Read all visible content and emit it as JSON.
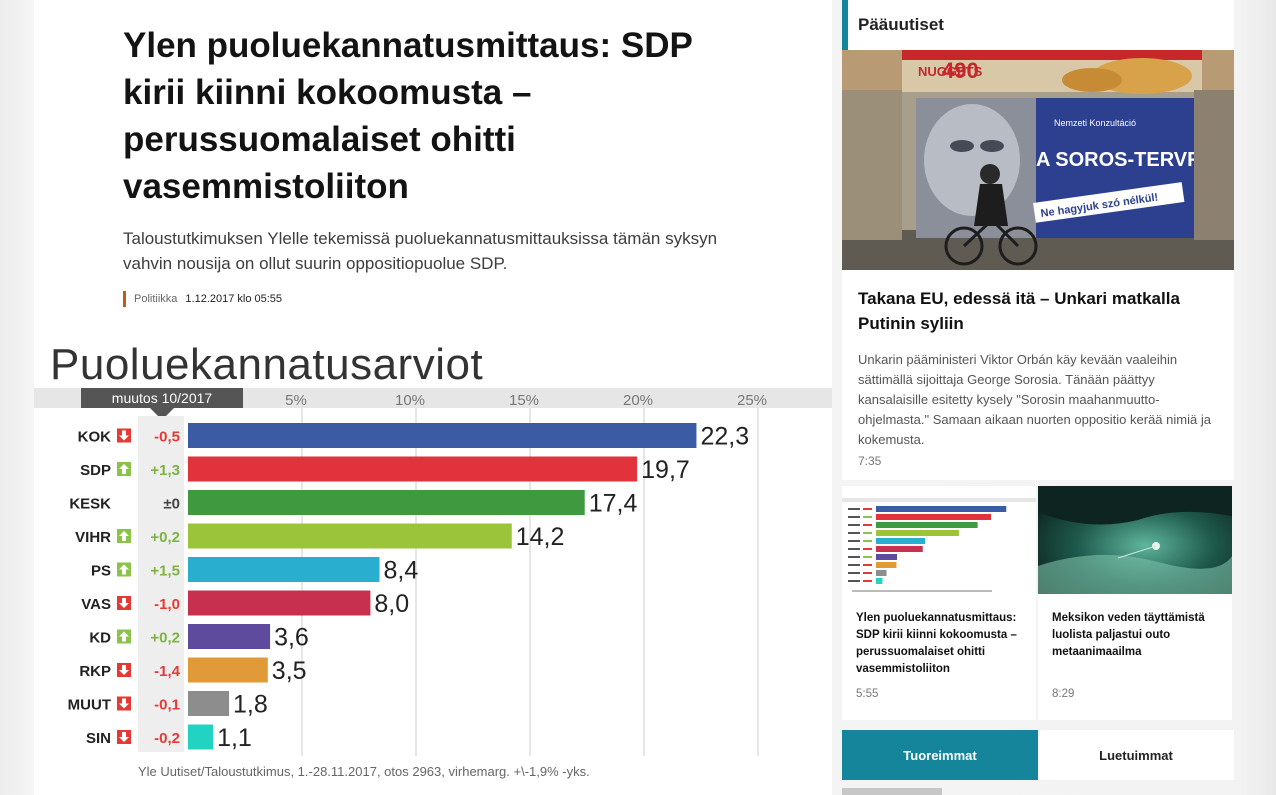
{
  "article": {
    "headline": "Ylen puoluekannatusmittaus: SDP kirii kiinni kokoomusta – perussuomalaiset ohitti vasemmistoliiton",
    "lead": "Taloustutkimuksen Ylelle tekemissä puoluekannatusmittauksissa tämän syksyn vahvin nousija on ollut suurin oppositiopuolue SDP.",
    "category": "Politiikka",
    "date": "1.12.2017 klo 05:55"
  },
  "chart_data": {
    "type": "bar",
    "title": "Puoluekannatusarviot",
    "change_header": "muutos 10/2017",
    "x_ticks": [
      "5%",
      "10%",
      "15%",
      "20%",
      "25%"
    ],
    "xlim": [
      0,
      25
    ],
    "categories": [
      "KOK",
      "SDP",
      "KESK",
      "VIHR",
      "PS",
      "VAS",
      "KD",
      "RKP",
      "MUUT",
      "SIN"
    ],
    "values": [
      22.3,
      19.7,
      17.4,
      14.2,
      8.4,
      8.0,
      3.6,
      3.5,
      1.8,
      1.1
    ],
    "value_labels": [
      "22,3",
      "19,7",
      "17,4",
      "14,2",
      "8,4",
      "8,0",
      "3,6",
      "3,5",
      "1,8",
      "1,1"
    ],
    "changes": [
      "-0,5",
      "+1,3",
      "±0",
      "+0,2",
      "+1,5",
      "-1,0",
      "+0,2",
      "-1,4",
      "-0,1",
      "-0,2"
    ],
    "directions": [
      "down",
      "up",
      "none",
      "up",
      "up",
      "down",
      "up",
      "down",
      "down",
      "down"
    ],
    "colors": [
      "#3b5ba5",
      "#e2323b",
      "#3f9a3f",
      "#9bc43a",
      "#2aaed0",
      "#c7304f",
      "#5e4b9e",
      "#e09a38",
      "#8d8d8d",
      "#21d3c0"
    ],
    "source": "Yle Uutiset/Taloustutkimus, 1.-28.11.2017, otos 2963, virhemarg. +\\-1,9% -yks.",
    "grid": true
  },
  "sidebar": {
    "section_title": "Pääuutiset",
    "main_story": {
      "title": "Takana EU, edessä itä – Unkari matkalla Putinin syliin",
      "body": "Unkarin pääministeri Viktor Orbán käy kevään vaaleihin sättimällä sijoittaja George Sorosia. Tänään päättyy kansalaisille esitetty kysely \"Sorosin maahanmuutto-ohjelmasta.\" Samaan aikaan nuorten oppositio kerää nimiä ja kokemusta.",
      "time": "7:35",
      "photo_texts": {
        "price": "490",
        "brand": "NUGGETS",
        "consultation": "Nemzeti Konzultáció",
        "slogan": "A SOROS-TERVRŐL",
        "sub_slogan": "Ne hagyjuk szó nélkül!"
      }
    },
    "cards": [
      {
        "title": "Ylen puoluekannatusmittaus: SDP kirii kiinni kokoomusta – perussuomalaiset ohitti vasemmistoliiton",
        "time": "5:55"
      },
      {
        "title": "Meksikon veden täyttämistä luolista paljastui outo metaanimaailma",
        "time": "8:29"
      }
    ],
    "tabs": [
      "Tuoreimmat",
      "Luetuimmat"
    ]
  }
}
